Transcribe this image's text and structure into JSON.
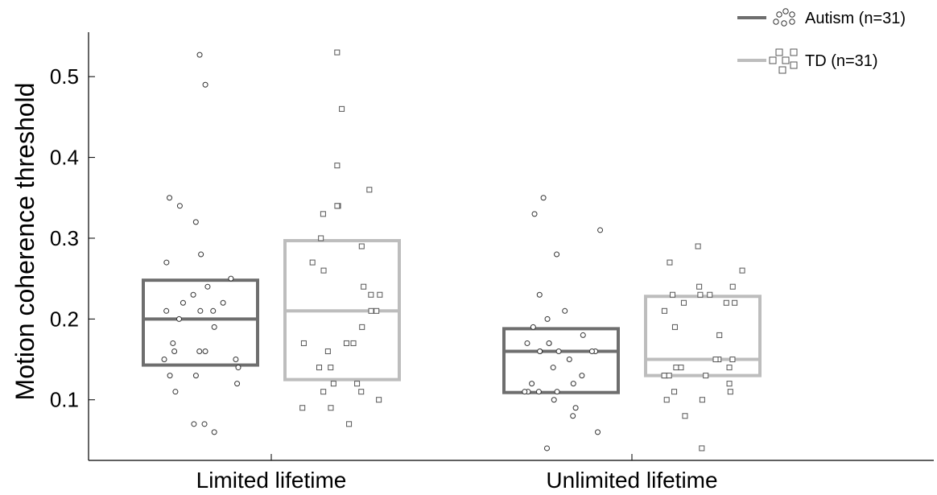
{
  "chart_data": {
    "type": "box-scatter",
    "ylabel": "Motion coherence threshold",
    "xlabel": "",
    "ylim": [
      0.025,
      0.555
    ],
    "yticks": [
      0.1,
      0.2,
      0.3,
      0.4,
      0.5
    ],
    "ytick_labels": [
      "0.1",
      "0.2",
      "0.3",
      "0.4",
      "0.5"
    ],
    "categories": [
      "Limited lifetime",
      "Unlimited lifetime"
    ],
    "legend_position": "top-right",
    "series": [
      {
        "name": "Autism (n=31)",
        "color": "#6e6e6e",
        "marker": "circle",
        "boxes": [
          {
            "q1": 0.143,
            "median": 0.2,
            "q3": 0.248
          },
          {
            "q1": 0.109,
            "median": 0.16,
            "q3": 0.188
          }
        ],
        "points": [
          [
            0.527,
            0.49,
            0.35,
            0.34,
            0.32,
            0.28,
            0.27,
            0.25,
            0.24,
            0.23,
            0.22,
            0.22,
            0.21,
            0.21,
            0.21,
            0.2,
            0.19,
            0.17,
            0.16,
            0.16,
            0.16,
            0.15,
            0.15,
            0.14,
            0.13,
            0.13,
            0.12,
            0.11,
            0.07,
            0.07,
            0.06
          ],
          [
            0.35,
            0.33,
            0.31,
            0.28,
            0.23,
            0.21,
            0.2,
            0.19,
            0.18,
            0.17,
            0.17,
            0.17,
            0.16,
            0.16,
            0.16,
            0.16,
            0.16,
            0.15,
            0.14,
            0.13,
            0.12,
            0.12,
            0.11,
            0.11,
            0.11,
            0.11,
            0.1,
            0.09,
            0.08,
            0.06,
            0.04
          ]
        ]
      },
      {
        "name": "TD (n=31)",
        "color": "#bdbdbd",
        "marker": "square",
        "boxes": [
          {
            "q1": 0.125,
            "median": 0.21,
            "q3": 0.297
          },
          {
            "q1": 0.13,
            "median": 0.15,
            "q3": 0.228
          }
        ],
        "points": [
          [
            0.53,
            0.46,
            0.39,
            0.36,
            0.34,
            0.34,
            0.33,
            0.3,
            0.29,
            0.27,
            0.26,
            0.24,
            0.23,
            0.23,
            0.21,
            0.21,
            0.19,
            0.17,
            0.17,
            0.17,
            0.16,
            0.14,
            0.14,
            0.12,
            0.12,
            0.11,
            0.11,
            0.1,
            0.09,
            0.09,
            0.07
          ],
          [
            0.29,
            0.27,
            0.26,
            0.24,
            0.24,
            0.23,
            0.23,
            0.23,
            0.22,
            0.22,
            0.22,
            0.21,
            0.19,
            0.18,
            0.15,
            0.15,
            0.15,
            0.14,
            0.14,
            0.14,
            0.13,
            0.13,
            0.13,
            0.13,
            0.12,
            0.11,
            0.11,
            0.1,
            0.1,
            0.08,
            0.04
          ]
        ]
      }
    ]
  }
}
